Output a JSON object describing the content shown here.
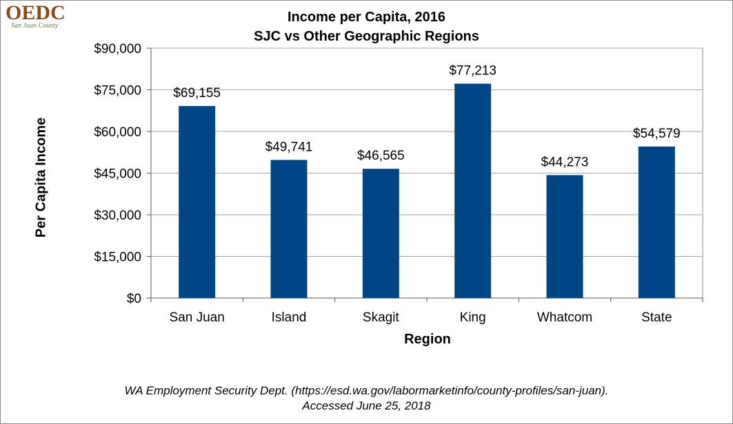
{
  "logo": {
    "main": "OEDC",
    "sub": "San Juan County"
  },
  "chart_data": {
    "type": "bar",
    "title": "Income per Capita, 2016",
    "subtitle": "SJC vs Other Geographic Regions",
    "xlabel": "Region",
    "ylabel": "Per Capita Income",
    "categories": [
      "San Juan",
      "Island",
      "Skagit",
      "King",
      "Whatcom",
      "State"
    ],
    "values": [
      69155,
      49741,
      46565,
      77213,
      44273,
      54579
    ],
    "data_labels": [
      "$69,155",
      "$49,741",
      "$46,565",
      "$77,213",
      "$44,273",
      "$54,579"
    ],
    "ylim": [
      0,
      90000
    ],
    "yticks": [
      0,
      15000,
      30000,
      45000,
      60000,
      75000,
      90000
    ],
    "ytick_labels": [
      "$0",
      "$15,000",
      "$30,000",
      "$45,000",
      "$60,000",
      "$75,000",
      "$90,000"
    ],
    "bar_color": "#004586",
    "grid": true,
    "legend": "none"
  },
  "source": {
    "line1": "WA Employment Security Dept. (https://esd.wa.gov/labormarketinfo/county-profiles/san-juan).",
    "line2": "Accessed June 25, 2018"
  }
}
